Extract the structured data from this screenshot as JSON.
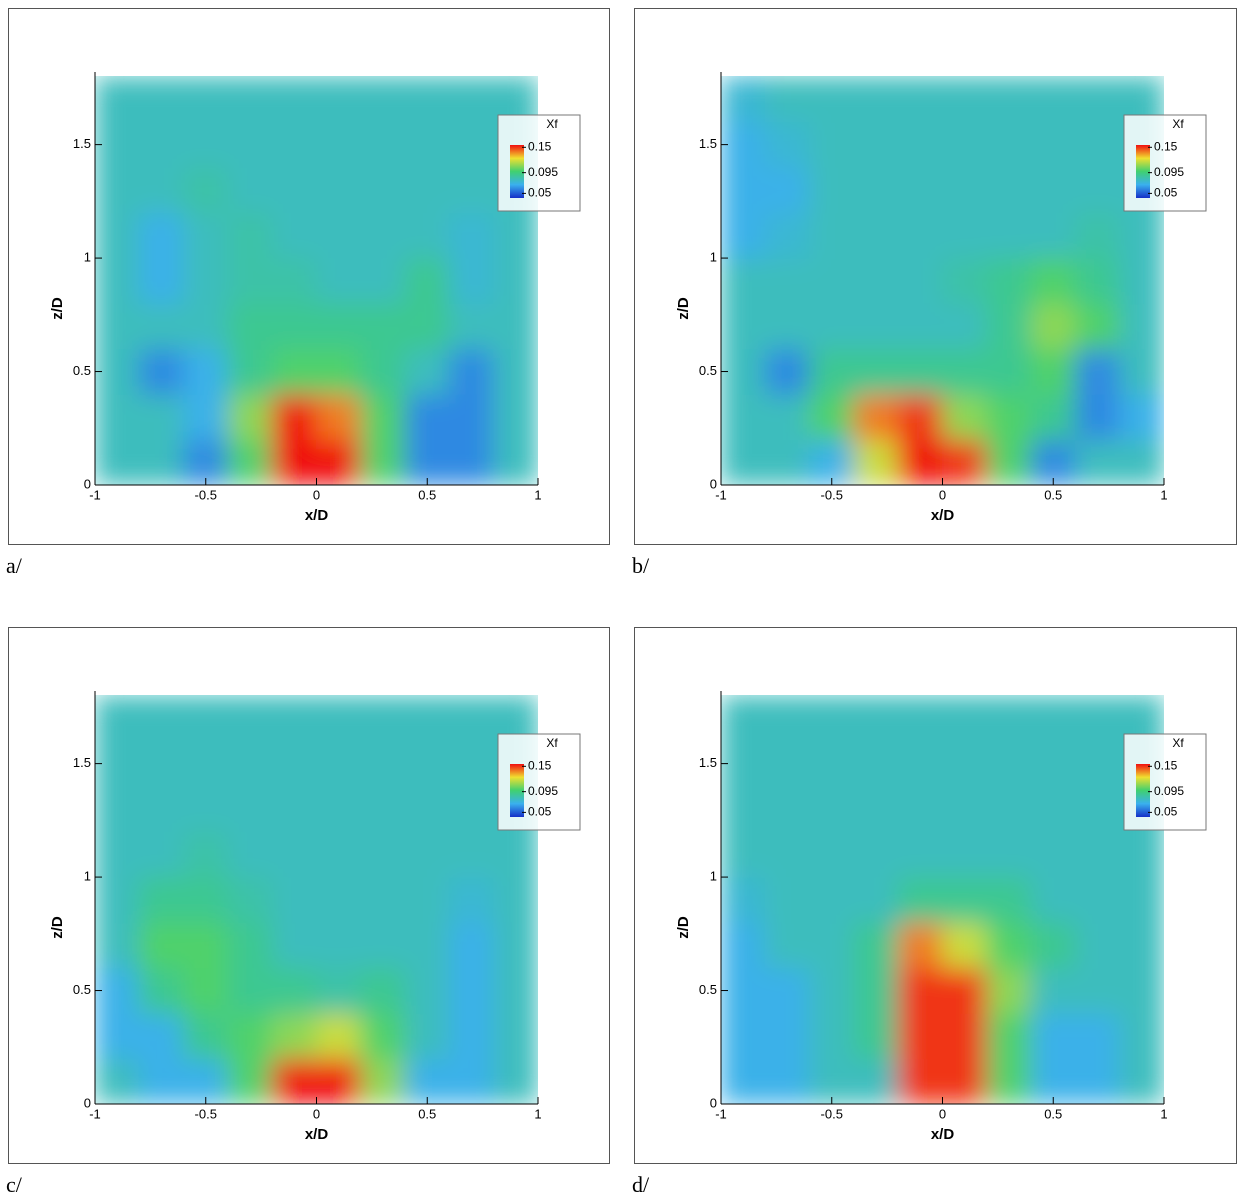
{
  "chart_data": [
    {
      "type": "heatmap",
      "caption": "a/",
      "xlabel": "x/D",
      "ylabel": "z/D",
      "legend_title": "Xf",
      "x": [
        -0.9,
        -0.7,
        -0.5,
        -0.3,
        -0.1,
        0.1,
        0.3,
        0.5,
        0.7,
        0.9
      ],
      "y": [
        0.1,
        0.3,
        0.5,
        0.7,
        0.9,
        1.1,
        1.3,
        1.5,
        1.7
      ],
      "z": [
        [
          0.08,
          0.08,
          0.06,
          0.1,
          0.16,
          0.16,
          0.1,
          0.06,
          0.06,
          0.08
        ],
        [
          0.08,
          0.08,
          0.07,
          0.11,
          0.16,
          0.14,
          0.1,
          0.06,
          0.06,
          0.08
        ],
        [
          0.08,
          0.06,
          0.07,
          0.09,
          0.1,
          0.1,
          0.09,
          0.08,
          0.06,
          0.08
        ],
        [
          0.08,
          0.08,
          0.08,
          0.09,
          0.09,
          0.09,
          0.09,
          0.09,
          0.08,
          0.08
        ],
        [
          0.08,
          0.07,
          0.08,
          0.085,
          0.085,
          0.08,
          0.08,
          0.09,
          0.075,
          0.08
        ],
        [
          0.08,
          0.07,
          0.08,
          0.085,
          0.08,
          0.08,
          0.08,
          0.08,
          0.075,
          0.08
        ],
        [
          0.08,
          0.08,
          0.085,
          0.08,
          0.08,
          0.08,
          0.08,
          0.08,
          0.08,
          0.08
        ],
        [
          0.08,
          0.08,
          0.08,
          0.08,
          0.08,
          0.08,
          0.08,
          0.08,
          0.08,
          0.08
        ],
        [
          0.08,
          0.08,
          0.08,
          0.08,
          0.08,
          0.08,
          0.08,
          0.08,
          0.08,
          0.08
        ]
      ],
      "xlim": [
        -1,
        1
      ],
      "ylim": [
        0,
        1.82
      ],
      "xticks": [
        -1,
        -0.5,
        0,
        0.5,
        1
      ],
      "yticks": [
        0,
        0.5,
        1,
        1.5
      ],
      "clim": [
        0.04,
        0.155
      ],
      "cticks": [
        0.05,
        0.095,
        0.15
      ],
      "colormap": [
        "#1530c8",
        "#3ab0ee",
        "#40d070",
        "#f0e030",
        "#f01010"
      ]
    },
    {
      "type": "heatmap",
      "caption": "b/",
      "xlabel": "x/D",
      "ylabel": "z/D",
      "legend_title": "Xf",
      "x": [
        -0.9,
        -0.7,
        -0.5,
        -0.3,
        -0.1,
        0.1,
        0.3,
        0.5,
        0.7,
        0.9
      ],
      "y": [
        0.1,
        0.3,
        0.5,
        0.7,
        0.9,
        1.1,
        1.3,
        1.5,
        1.7
      ],
      "z": [
        [
          0.08,
          0.08,
          0.07,
          0.12,
          0.16,
          0.15,
          0.1,
          0.06,
          0.08,
          0.08
        ],
        [
          0.08,
          0.08,
          0.1,
          0.14,
          0.15,
          0.11,
          0.1,
          0.09,
          0.06,
          0.07
        ],
        [
          0.08,
          0.06,
          0.09,
          0.09,
          0.09,
          0.09,
          0.09,
          0.1,
          0.06,
          0.08
        ],
        [
          0.08,
          0.08,
          0.08,
          0.08,
          0.08,
          0.08,
          0.09,
          0.11,
          0.1,
          0.08
        ],
        [
          0.08,
          0.08,
          0.08,
          0.08,
          0.08,
          0.085,
          0.09,
          0.1,
          0.09,
          0.08
        ],
        [
          0.07,
          0.075,
          0.08,
          0.08,
          0.08,
          0.08,
          0.08,
          0.08,
          0.085,
          0.08
        ],
        [
          0.07,
          0.07,
          0.08,
          0.08,
          0.08,
          0.08,
          0.08,
          0.08,
          0.08,
          0.08
        ],
        [
          0.07,
          0.075,
          0.08,
          0.08,
          0.08,
          0.08,
          0.08,
          0.08,
          0.08,
          0.08
        ],
        [
          0.075,
          0.08,
          0.08,
          0.08,
          0.08,
          0.08,
          0.08,
          0.08,
          0.08,
          0.08
        ]
      ],
      "xlim": [
        -1,
        1
      ],
      "ylim": [
        0,
        1.82
      ],
      "xticks": [
        -1,
        -0.5,
        0,
        0.5,
        1
      ],
      "yticks": [
        0,
        0.5,
        1,
        1.5
      ],
      "clim": [
        0.04,
        0.155
      ],
      "cticks": [
        0.05,
        0.095,
        0.15
      ],
      "colormap": [
        "#1530c8",
        "#3ab0ee",
        "#40d070",
        "#f0e030",
        "#f01010"
      ]
    },
    {
      "type": "heatmap",
      "caption": "c/",
      "xlabel": "x/D",
      "ylabel": "z/D",
      "legend_title": "Xf",
      "x": [
        -0.9,
        -0.7,
        -0.5,
        -0.3,
        -0.1,
        0.1,
        0.3,
        0.5,
        0.7,
        0.9
      ],
      "y": [
        0.1,
        0.3,
        0.5,
        0.7,
        0.9,
        1.1,
        1.3,
        1.5,
        1.7
      ],
      "z": [
        [
          0.08,
          0.07,
          0.07,
          0.1,
          0.16,
          0.16,
          0.11,
          0.07,
          0.07,
          0.08
        ],
        [
          0.07,
          0.07,
          0.09,
          0.1,
          0.11,
          0.12,
          0.1,
          0.08,
          0.07,
          0.08
        ],
        [
          0.07,
          0.09,
          0.1,
          0.09,
          0.09,
          0.085,
          0.09,
          0.08,
          0.07,
          0.08
        ],
        [
          0.08,
          0.1,
          0.1,
          0.09,
          0.08,
          0.08,
          0.08,
          0.08,
          0.07,
          0.08
        ],
        [
          0.08,
          0.09,
          0.09,
          0.085,
          0.08,
          0.08,
          0.08,
          0.08,
          0.075,
          0.08
        ],
        [
          0.08,
          0.08,
          0.085,
          0.08,
          0.08,
          0.08,
          0.08,
          0.08,
          0.08,
          0.08
        ],
        [
          0.08,
          0.08,
          0.08,
          0.08,
          0.08,
          0.08,
          0.08,
          0.08,
          0.08,
          0.08
        ],
        [
          0.08,
          0.08,
          0.08,
          0.08,
          0.08,
          0.08,
          0.08,
          0.08,
          0.08,
          0.08
        ],
        [
          0.08,
          0.08,
          0.08,
          0.08,
          0.08,
          0.08,
          0.08,
          0.08,
          0.08,
          0.08
        ]
      ],
      "xlim": [
        -1,
        1
      ],
      "ylim": [
        0,
        1.82
      ],
      "xticks": [
        -1,
        -0.5,
        0,
        0.5,
        1
      ],
      "yticks": [
        0,
        0.5,
        1,
        1.5
      ],
      "clim": [
        0.04,
        0.155
      ],
      "cticks": [
        0.05,
        0.095,
        0.15
      ],
      "colormap": [
        "#1530c8",
        "#3ab0ee",
        "#40d070",
        "#f0e030",
        "#f01010"
      ]
    },
    {
      "type": "heatmap",
      "caption": "d/",
      "xlabel": "x/D",
      "ylabel": "z/D",
      "legend_title": "Xf",
      "x": [
        -0.9,
        -0.7,
        -0.5,
        -0.3,
        -0.1,
        0.1,
        0.3,
        0.5,
        0.7,
        0.9
      ],
      "y": [
        0.1,
        0.3,
        0.5,
        0.7,
        0.9,
        1.1,
        1.3,
        1.5,
        1.7
      ],
      "z": [
        [
          0.07,
          0.07,
          0.08,
          0.08,
          0.15,
          0.15,
          0.1,
          0.07,
          0.07,
          0.08
        ],
        [
          0.07,
          0.07,
          0.08,
          0.09,
          0.15,
          0.15,
          0.1,
          0.07,
          0.07,
          0.08
        ],
        [
          0.07,
          0.07,
          0.08,
          0.09,
          0.15,
          0.15,
          0.11,
          0.08,
          0.08,
          0.08
        ],
        [
          0.07,
          0.08,
          0.08,
          0.09,
          0.14,
          0.12,
          0.1,
          0.09,
          0.08,
          0.08
        ],
        [
          0.075,
          0.08,
          0.08,
          0.08,
          0.09,
          0.09,
          0.09,
          0.08,
          0.08,
          0.08
        ],
        [
          0.08,
          0.08,
          0.08,
          0.08,
          0.08,
          0.08,
          0.08,
          0.08,
          0.08,
          0.08
        ],
        [
          0.08,
          0.08,
          0.08,
          0.08,
          0.08,
          0.08,
          0.08,
          0.08,
          0.08,
          0.08
        ],
        [
          0.08,
          0.08,
          0.08,
          0.08,
          0.08,
          0.08,
          0.08,
          0.08,
          0.08,
          0.08
        ],
        [
          0.08,
          0.08,
          0.08,
          0.08,
          0.08,
          0.08,
          0.08,
          0.08,
          0.08,
          0.08
        ]
      ],
      "xlim": [
        -1,
        1
      ],
      "ylim": [
        0,
        1.82
      ],
      "xticks": [
        -1,
        -0.5,
        0,
        0.5,
        1
      ],
      "yticks": [
        0,
        0.5,
        1,
        1.5
      ],
      "clim": [
        0.04,
        0.155
      ],
      "cticks": [
        0.05,
        0.095,
        0.15
      ],
      "colormap": [
        "#1530c8",
        "#3ab0ee",
        "#40d070",
        "#f0e030",
        "#f01010"
      ]
    }
  ]
}
